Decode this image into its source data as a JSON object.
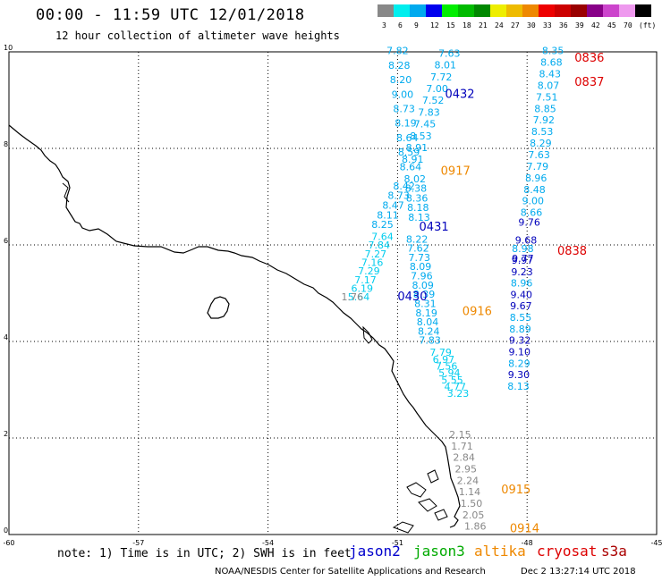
{
  "title": "00:00 - 11:59 UTC 12/01/2018",
  "subtitle": "12 hour collection of altimeter wave heights",
  "scale": {
    "unit": "(ft)",
    "bins": [
      {
        "label": "3",
        "color": "#888888"
      },
      {
        "label": "6",
        "color": "#00eeee"
      },
      {
        "label": "9",
        "color": "#00aaee"
      },
      {
        "label": "12",
        "color": "#0000ee"
      },
      {
        "label": "15",
        "color": "#00ee00"
      },
      {
        "label": "18",
        "color": "#00bb00"
      },
      {
        "label": "21",
        "color": "#008800"
      },
      {
        "label": "24",
        "color": "#eeee00"
      },
      {
        "label": "27",
        "color": "#eebb00"
      },
      {
        "label": "30",
        "color": "#ee8800"
      },
      {
        "label": "33",
        "color": "#ee0000"
      },
      {
        "label": "36",
        "color": "#cc0000"
      },
      {
        "label": "39",
        "color": "#990000"
      },
      {
        "label": "42",
        "color": "#880088"
      },
      {
        "label": "45",
        "color": "#cc44cc"
      },
      {
        "label": "70",
        "color": "#ee99ee"
      },
      {
        "label": "",
        "color": "#000000"
      }
    ]
  },
  "axes": {
    "x_ticks": [
      "-60",
      "-57",
      "-54",
      "-51",
      "-48",
      "-45"
    ],
    "y_ticks": [
      "0",
      "2",
      "4",
      "6",
      "8",
      "10"
    ],
    "lon_range": [
      -60,
      -45
    ],
    "lat_range": [
      0,
      10
    ]
  },
  "time_labels": [
    {
      "text": "0836",
      "lon": -46.9,
      "lat": 9.8,
      "color": "#dd0000"
    },
    {
      "text": "0837",
      "lon": -46.9,
      "lat": 9.3,
      "color": "#dd0000"
    },
    {
      "text": "0432",
      "lon": -49.9,
      "lat": 9.05,
      "color": "#0000bb"
    },
    {
      "text": "0917",
      "lon": -50.0,
      "lat": 7.45,
      "color": "#ee8800"
    },
    {
      "text": "0431",
      "lon": -50.5,
      "lat": 6.3,
      "color": "#0000bb"
    },
    {
      "text": "0838",
      "lon": -47.3,
      "lat": 5.8,
      "color": "#dd0000"
    },
    {
      "text": "0430",
      "lon": -51.0,
      "lat": 4.85,
      "color": "#0000bb"
    },
    {
      "text": "0916",
      "lon": -49.5,
      "lat": 4.55,
      "color": "#ee8800"
    },
    {
      "text": "0915",
      "lon": -48.6,
      "lat": 0.85,
      "color": "#ee8800"
    },
    {
      "text": "0914",
      "lon": -48.4,
      "lat": 0.05,
      "color": "#ee8800"
    }
  ],
  "tracks": [
    {
      "name": "jason2-track-north",
      "color": "#00aaee",
      "start_lon": -51.0,
      "start_lat": 9.95,
      "end_lon": -50.7,
      "end_lat": 7.55,
      "values": [
        "7.82",
        "8.28",
        "8.20",
        "9.00",
        "8.73",
        "8.19",
        "8.64",
        "8.59",
        "8.64"
      ]
    },
    {
      "name": "altika-track-down",
      "color": "#00aaee",
      "start_lon": -49.8,
      "start_lat": 9.9,
      "end_lon": -50.65,
      "end_lat": 7.7,
      "values": [
        "7.63",
        "8.01",
        "7.72",
        "7.00",
        "7.52",
        "7.83",
        "7.45",
        "8.53",
        "8.91",
        "8.91"
      ]
    },
    {
      "name": "mixed-track-mid",
      "color": "#00aaee",
      "start_lon": -50.6,
      "start_lat": 7.3,
      "end_lon": -50.5,
      "end_lat": 6.5,
      "values": [
        "8.02",
        "8.38",
        "8.36",
        "8.18",
        "8.13"
      ]
    },
    {
      "name": "jason2-track-mid",
      "color": "#00aaee",
      "start_lon": -50.85,
      "start_lat": 7.15,
      "end_lon": -51.35,
      "end_lat": 6.35,
      "values": [
        "8.42",
        "8.73",
        "8.47",
        "8.11",
        "8.25"
      ]
    },
    {
      "name": "jason2-track-south",
      "color": "#00ccee",
      "start_lon": -51.35,
      "start_lat": 6.1,
      "end_lon": -51.9,
      "end_lat": 4.85,
      "values": [
        "7.64",
        "7.84",
        "7.27",
        "7.16",
        "7.29",
        "7.17",
        "6.19",
        "5.64"
      ]
    },
    {
      "name": "jason2-track-land",
      "color": "#888888",
      "start_lon": -52.05,
      "start_lat": 4.85,
      "end_lon": -52.05,
      "end_lat": 4.85,
      "values": [
        "1.76"
      ]
    },
    {
      "name": "altika-track-mid",
      "color": "#00aaee",
      "start_lon": -50.55,
      "start_lat": 6.05,
      "end_lon": -50.25,
      "end_lat": 3.95,
      "values": [
        "8.22",
        "7.62",
        "7.73",
        "8.09",
        "7.96",
        "8.09",
        "8.39",
        "8.31",
        "8.19",
        "8.04",
        "8.24",
        "7.83"
      ]
    },
    {
      "name": "altika-track-south",
      "color": "#00ccee",
      "start_lon": -50.0,
      "start_lat": 3.7,
      "end_lon": -49.6,
      "end_lat": 2.85,
      "values": [
        "7.79",
        "6.97",
        "7.56",
        "5.94",
        "5.55",
        "4.77",
        "3.23"
      ]
    },
    {
      "name": "altika-track-coast",
      "color": "#888888",
      "start_lon": -49.55,
      "start_lat": 2.0,
      "end_lon": -49.2,
      "end_lat": 0.1,
      "values": [
        "2.15",
        "1.71",
        "2.84",
        "2.95",
        "2.24",
        "1.14",
        "1.50",
        "2.05",
        "1.86"
      ]
    },
    {
      "name": "cryosat-track-cyan",
      "color": "#00aaee",
      "start_lon": -47.4,
      "start_lat": 9.95,
      "end_lon": -47.9,
      "end_lat": 6.6,
      "values": [
        "8.35",
        "8.68",
        "8.43",
        "8.07",
        "7.51",
        "8.85",
        "7.92",
        "8.53",
        "8.29",
        "7.63",
        "7.79",
        "8.96",
        "8.48",
        "9.00",
        "8.66"
      ]
    },
    {
      "name": "cryosat-track-blue",
      "color": "#0000bb",
      "start_lon": -47.95,
      "start_lat": 6.4,
      "end_lon": -48.1,
      "end_lat": 5.65,
      "values": [
        "9.76",
        "9.68",
        "9.77"
      ]
    },
    {
      "name": "cryosat-track-mixed",
      "color": "#00aaee",
      "start_lon": -48.1,
      "start_lat": 5.85,
      "end_lon": -48.2,
      "end_lat": 3.0,
      "values": [
        "8.98",
        "9.97",
        "9.23",
        "8.96",
        "9.40",
        "9.67",
        "8.55",
        "8.89",
        "9.32",
        "9.10",
        "8.29",
        "9.30",
        "8.13"
      ],
      "colors": [
        "#00aaee",
        "#0000bb",
        "#0000bb",
        "#00aaee",
        "#0000bb",
        "#0000bb",
        "#00aaee",
        "#00aaee",
        "#0000bb",
        "#0000bb",
        "#00aaee",
        "#0000bb",
        "#00aaee"
      ]
    }
  ],
  "note": "note: 1) Time is in UTC; 2) SWH is in feet",
  "satellites": [
    {
      "name": "jason2",
      "color": "#0000cc"
    },
    {
      "name": "jason3",
      "color": "#00aa00"
    },
    {
      "name": "altika",
      "color": "#ee8800"
    },
    {
      "name": "cryosat",
      "color": "#dd0000"
    },
    {
      "name": "s3a",
      "color": "#aa0000"
    }
  ],
  "credit": "NOAA/NESDIS Center for Satellite Applications and Research",
  "timestamp": "Dec  2 13:27:14 UTC 2018"
}
